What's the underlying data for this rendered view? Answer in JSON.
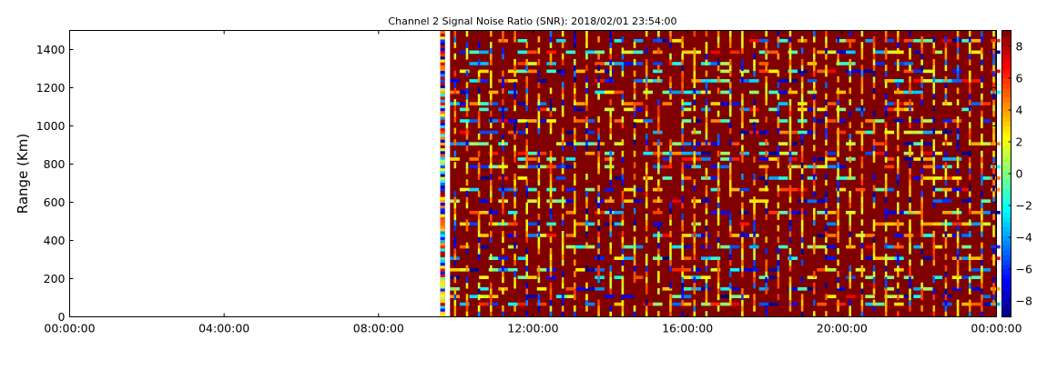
{
  "chart_data": {
    "type": "heatmap",
    "title": "Channel 2 Signal Noise Ratio (SNR): 2018/02/01 23:54:00",
    "xlabel": "",
    "ylabel": "Range (Km)",
    "x_ticks": [
      "00:00:00",
      "04:00:00",
      "08:00:00",
      "12:00:00",
      "16:00:00",
      "20:00:00",
      "00:00:00"
    ],
    "x_tick_hours": [
      0,
      4,
      8,
      12,
      16,
      20,
      24
    ],
    "xlim_hours": [
      0,
      24
    ],
    "y_ticks": [
      0,
      200,
      400,
      600,
      800,
      1000,
      1200,
      1400
    ],
    "ylim": [
      0,
      1500
    ],
    "data_start_hour": 9.6,
    "data_gap_hours": [
      9.72,
      9.85
    ],
    "data_end_hour": 24,
    "time_resolution_minutes": 5,
    "range_resolution_km": 15,
    "dominant_value": 9,
    "colorbar": {
      "min": -9,
      "max": 9,
      "ticks": [
        -8,
        -6,
        -4,
        -2,
        0,
        2,
        4,
        6,
        8
      ],
      "colormap": "jet"
    },
    "colors": {
      "jet_low": "#00007f",
      "jet_high": "#7f0000",
      "background": "#ffffff",
      "axis": "#000000"
    },
    "grid": false
  }
}
